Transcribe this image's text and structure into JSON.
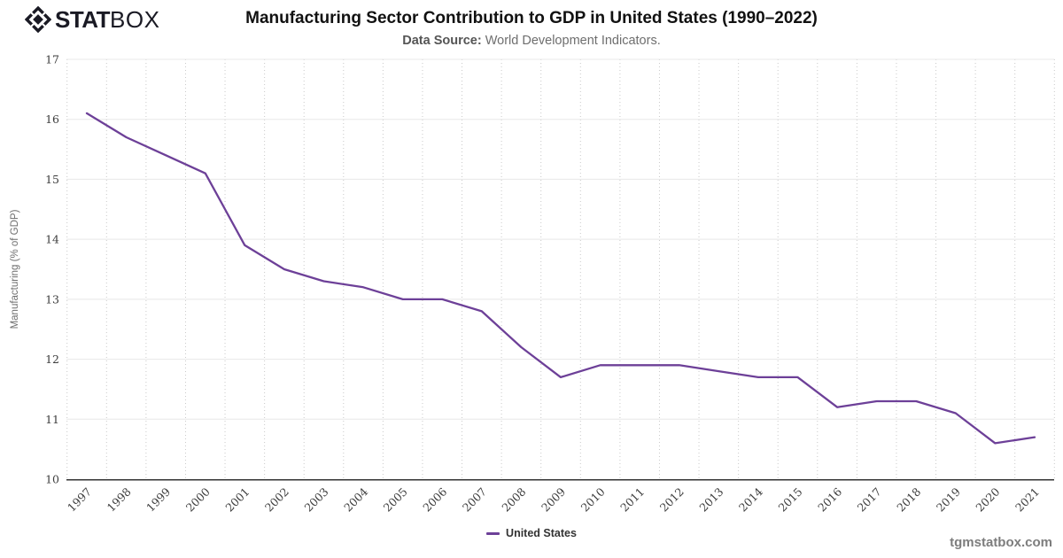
{
  "logo": {
    "stat": "STAT",
    "box": "BOX",
    "icon": "statbox-diamond-icon"
  },
  "header": {
    "title": "Manufacturing Sector Contribution to GDP in United States (1990–2022)",
    "subtitle_label": "Data Source:",
    "subtitle_rest": "World Development Indicators."
  },
  "legend": {
    "label": "United States"
  },
  "footer": {
    "site": "tgmstatbox.com"
  },
  "colors": {
    "line": "#6d4098",
    "grid": "#e8e8e8",
    "grid_dotted": "#c9c9c9",
    "axis": "#333333",
    "tick_label": "#3d3d3d",
    "axis_title": "#6e6e6e",
    "logo": "#1a1a24"
  },
  "chart_data": {
    "type": "line",
    "title": "Manufacturing Sector Contribution to GDP in United States (1990–2022)",
    "xlabel": "",
    "ylabel": "Manufacturing (% of GDP)",
    "x": [
      1997,
      1998,
      1999,
      2000,
      2001,
      2002,
      2003,
      2004,
      2005,
      2006,
      2007,
      2008,
      2009,
      2010,
      2011,
      2012,
      2013,
      2014,
      2015,
      2016,
      2017,
      2018,
      2019,
      2020,
      2021
    ],
    "series": [
      {
        "name": "United States",
        "color": "#6d4098",
        "values": [
          16.1,
          15.7,
          15.4,
          15.1,
          13.9,
          13.5,
          13.3,
          13.2,
          13.0,
          13.0,
          12.8,
          12.2,
          11.7,
          11.9,
          11.9,
          11.9,
          11.8,
          11.7,
          11.7,
          11.2,
          11.3,
          11.3,
          11.1,
          10.6,
          10.7
        ]
      }
    ],
    "ylim": [
      10,
      17
    ],
    "yticks": [
      10,
      11,
      12,
      13,
      14,
      15,
      16,
      17
    ],
    "grid": true,
    "legend_position": "bottom-center"
  }
}
